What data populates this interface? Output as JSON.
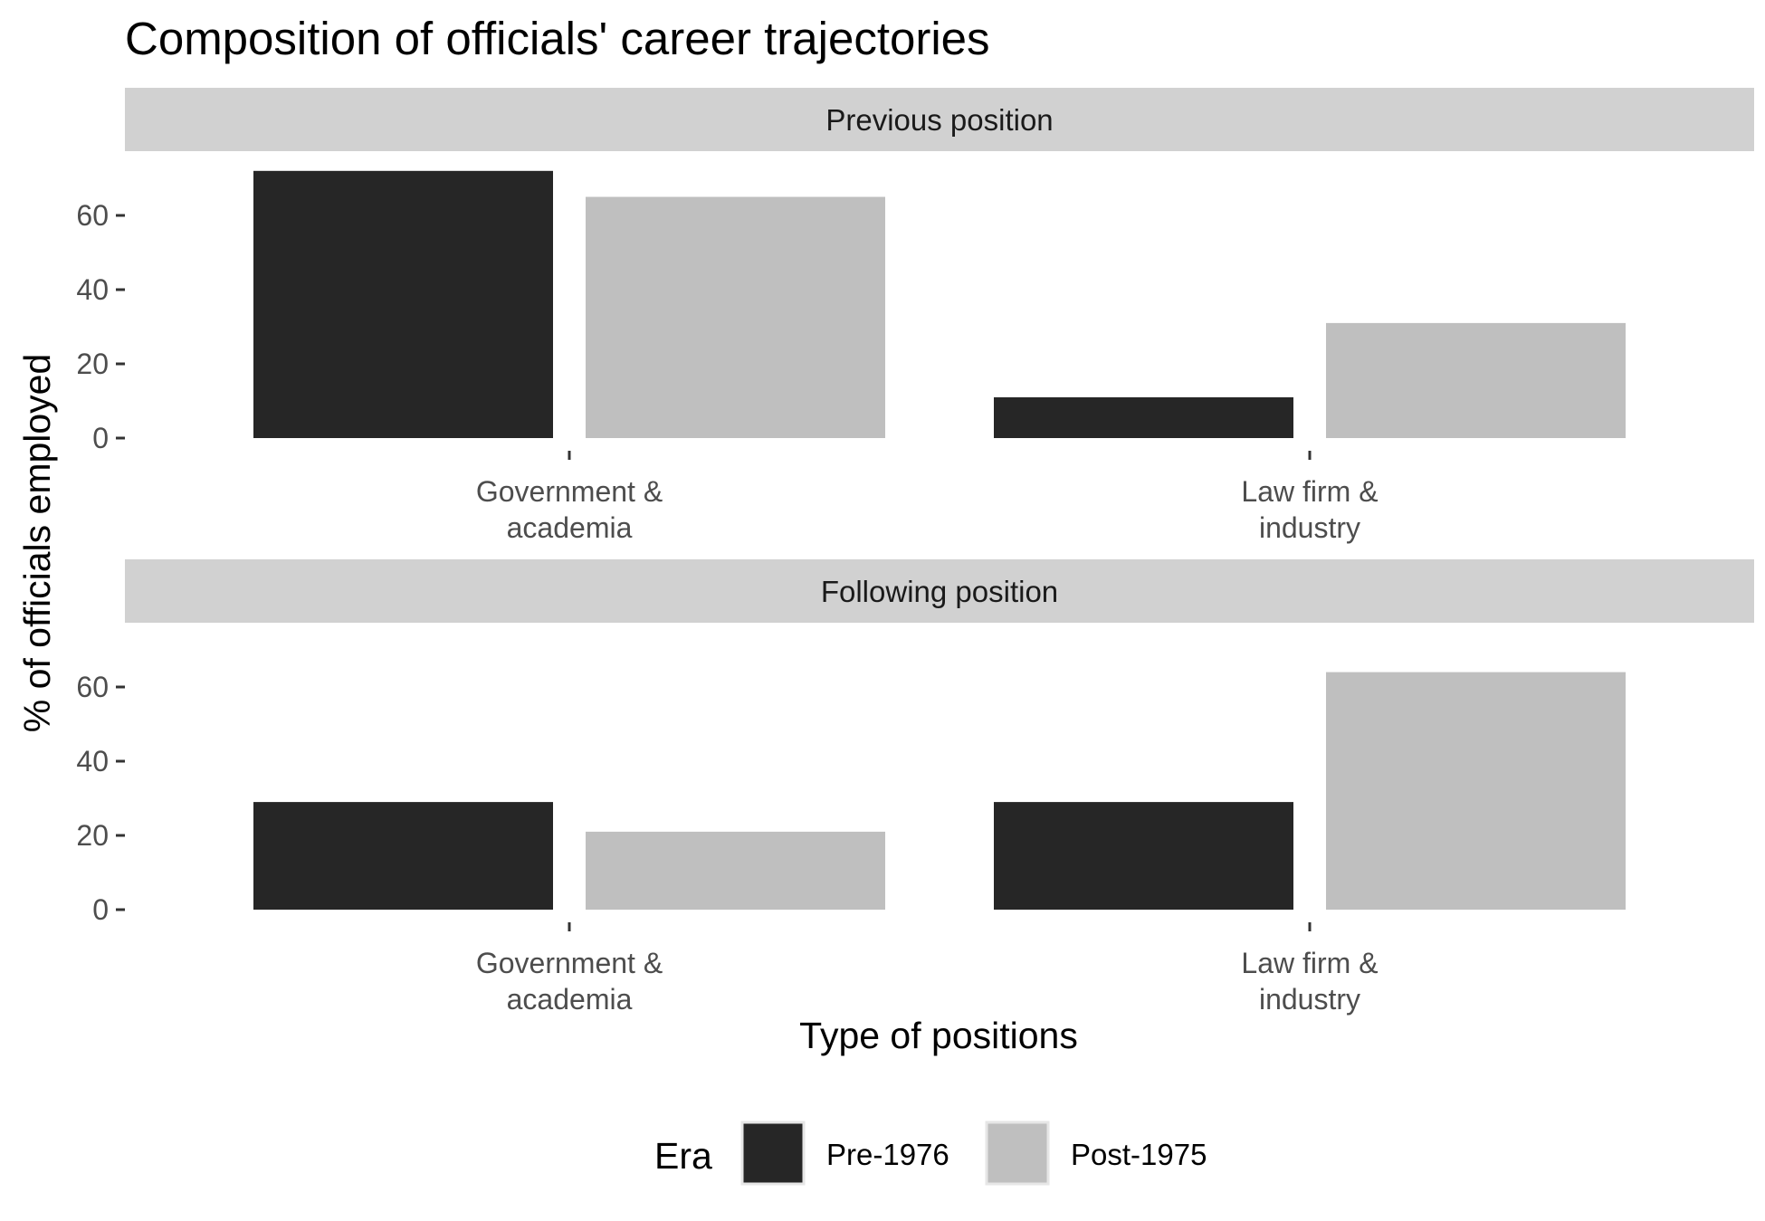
{
  "chart_data": {
    "type": "bar",
    "title": "Composition of officials' career trajectories",
    "xlabel": "Type of positions",
    "ylabel": "% of officials employed",
    "ylim": [
      0,
      66
    ],
    "yticks": [
      0,
      20,
      40,
      60
    ],
    "categories": [
      "Government &\nacademia",
      "Law firm &\nindustry"
    ],
    "legend": {
      "title": "Era",
      "placement": "bottom",
      "entries": [
        {
          "name": "Pre-1976",
          "color": "#262626"
        },
        {
          "name": "Post-1975",
          "color": "#bfbfbf"
        }
      ]
    },
    "facets": [
      {
        "label": "Previous position",
        "series": [
          {
            "name": "Pre-1976",
            "values": [
              72,
              11
            ]
          },
          {
            "name": "Post-1975",
            "values": [
              65,
              31
            ]
          }
        ]
      },
      {
        "label": "Following position",
        "series": [
          {
            "name": "Pre-1976",
            "values": [
              29,
              29
            ]
          },
          {
            "name": "Post-1975",
            "values": [
              21,
              64
            ]
          }
        ]
      }
    ],
    "grid": false,
    "colors": {
      "strip_background": "#d1d1d1"
    }
  }
}
